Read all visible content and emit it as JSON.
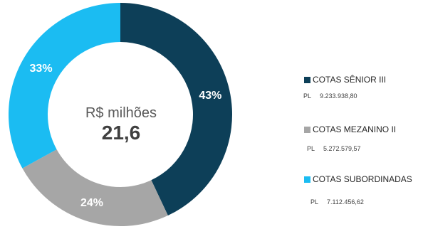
{
  "chart_data": {
    "type": "pie",
    "donut": true,
    "center_caption": "R$ milhões",
    "center_value": "21,6",
    "slices": [
      {
        "name": "COTAS SÊNIOR III",
        "value": 43,
        "label": "43%",
        "color": "#0D3F58",
        "pl_label": "PL",
        "pl_value": "9.233.938,80"
      },
      {
        "name": "COTAS MEZANINO II",
        "value": 24,
        "label": "24%",
        "color": "#A6A6A6",
        "pl_label": "PL",
        "pl_value": "5.272.579,57"
      },
      {
        "name": "COTAS SUBORDINADAS",
        "value": 33,
        "label": "33%",
        "color": "#1BBCF2",
        "pl_label": "PL",
        "pl_value": "7.112.456,62"
      }
    ],
    "legend_position": "right"
  }
}
